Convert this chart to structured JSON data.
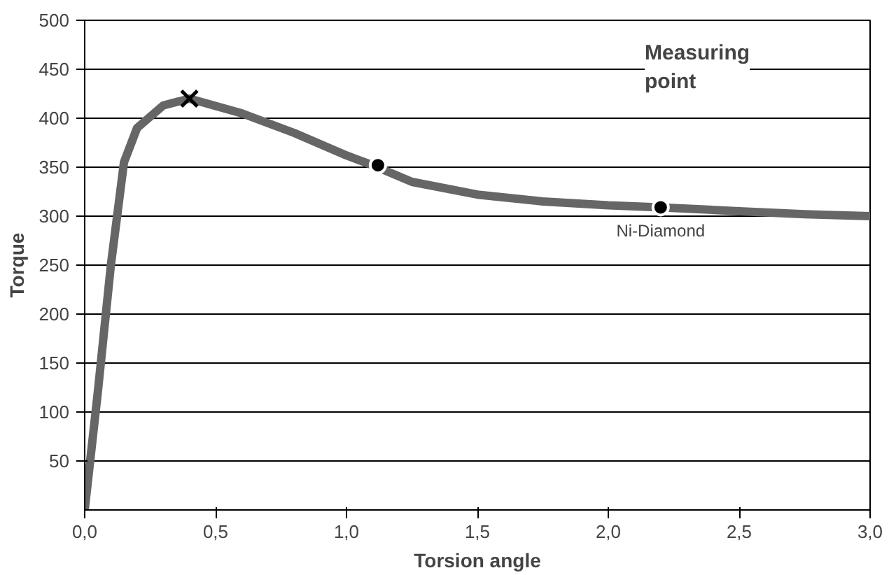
{
  "chart_data": {
    "type": "line",
    "xlabel": "Torsion angle",
    "ylabel": "Torque",
    "xlim": [
      0,
      3.0
    ],
    "xticks": [
      {
        "value": 0,
        "label": "0,0"
      },
      {
        "value": 0.5,
        "label": "0,5"
      },
      {
        "value": 1.0,
        "label": "1,0"
      },
      {
        "value": 1.5,
        "label": "1,5"
      },
      {
        "value": 2.0,
        "label": "2,0"
      },
      {
        "value": 2.5,
        "label": "2,5"
      },
      {
        "value": 3.0,
        "label": "3,0"
      }
    ],
    "ylim": [
      0,
      500
    ],
    "yticks": [
      50,
      100,
      150,
      200,
      250,
      300,
      350,
      400,
      450,
      500
    ],
    "grid": "y",
    "series": [
      {
        "color": "#666666",
        "marker": "none",
        "x": [
          0,
          0.05,
          0.1,
          0.15,
          0.2,
          0.3,
          0.4,
          0.6,
          0.8,
          1.0,
          1.1,
          1.25,
          1.5,
          1.75,
          2.0,
          2.2,
          2.5,
          2.75,
          3.0
        ],
        "values": [
          0,
          120,
          250,
          355,
          390,
          413,
          420,
          405,
          385,
          362,
          352,
          335,
          322,
          315,
          311,
          309,
          305,
          302,
          300
        ]
      },
      {
        "type": "scatter",
        "color": "#000000",
        "marker": "cross",
        "x": [
          0.4
        ],
        "values": [
          420
        ]
      },
      {
        "type": "scatter",
        "color": "#000000",
        "marker": "circle",
        "x": [
          1.12,
          2.2
        ],
        "values": [
          352,
          309
        ]
      }
    ],
    "annotations": [
      "Measuring point",
      {
        "text": "Ni-Diamond",
        "x": 2.2,
        "y": 309
      }
    ]
  }
}
